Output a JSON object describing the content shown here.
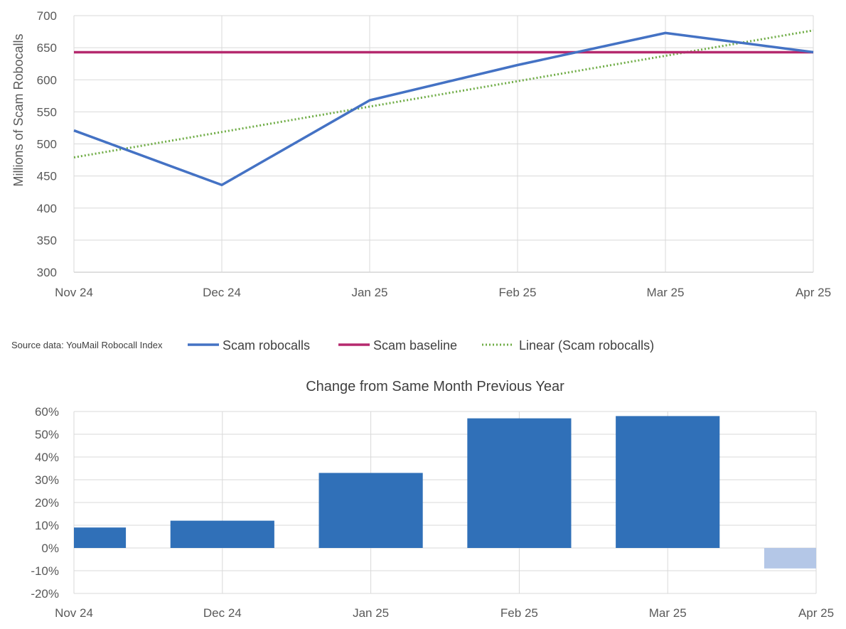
{
  "source_note": "Source data: YouMail Robocall Index",
  "chart_data": [
    {
      "type": "line",
      "title": "",
      "ylabel": "Millions of Scam Robocalls",
      "xlabel": "",
      "categories": [
        "Nov 24",
        "Dec 24",
        "Jan 25",
        "Feb 25",
        "Mar 25",
        "Apr 25"
      ],
      "ylim": [
        300,
        700
      ],
      "yticks": [
        300,
        350,
        400,
        450,
        500,
        550,
        600,
        650,
        700
      ],
      "ytick_labels": [
        "300",
        "350",
        "400",
        "450",
        "500",
        "550",
        "600",
        "650",
        "700"
      ],
      "grid": true,
      "legend_position": "bottom",
      "series": [
        {
          "name": "Scam robocalls",
          "style": "solid",
          "color": "#4472c4",
          "values": [
            521,
            436,
            568,
            623,
            673,
            643
          ]
        },
        {
          "name": "Scam baseline",
          "style": "solid",
          "color": "#b5296e",
          "values": [
            643,
            643,
            643,
            643,
            643,
            643
          ]
        },
        {
          "name": "Linear (Scam robocalls)",
          "style": "dotted",
          "color": "#70ad47",
          "values": [
            479,
            518.6,
            558.2,
            597.8,
            637.4,
            677
          ]
        }
      ]
    },
    {
      "type": "bar",
      "title": "Change from Same Month Previous Year",
      "xlabel": "",
      "ylabel": "",
      "categories": [
        "Nov 24",
        "Dec 24",
        "Jan 25",
        "Feb 25",
        "Mar 25",
        "Apr 25"
      ],
      "values": [
        0.09,
        0.12,
        0.33,
        0.57,
        0.58,
        -0.09
      ],
      "ylim": [
        -0.2,
        0.6
      ],
      "yticks": [
        -0.2,
        -0.1,
        0,
        0.1,
        0.2,
        0.3,
        0.4,
        0.5,
        0.6
      ],
      "ytick_labels": [
        "-20%",
        "-10%",
        "0%",
        "10%",
        "20%",
        "30%",
        "40%",
        "50%",
        "60%"
      ],
      "grid": true,
      "colors": {
        "positive": "#3070b8",
        "negative": "#b4c7e7"
      }
    }
  ]
}
